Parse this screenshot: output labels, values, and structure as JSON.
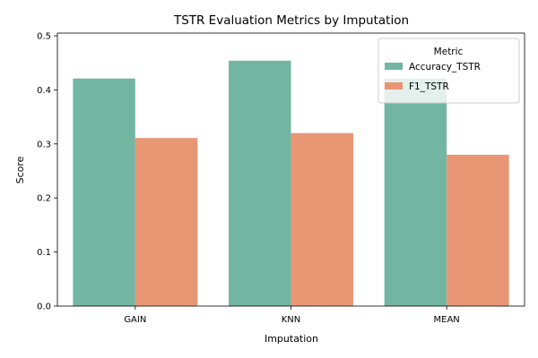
{
  "chart_data": {
    "type": "bar",
    "title": "TSTR Evaluation Metrics by Imputation",
    "xlabel": "Imputation",
    "ylabel": "Score",
    "categories": [
      "GAIN",
      "KNN",
      "MEAN"
    ],
    "series": [
      {
        "name": "Accuracy_TSTR",
        "values": [
          0.421,
          0.454,
          0.421
        ],
        "color": "#72b6a1"
      },
      {
        "name": "F1_TSTR",
        "values": [
          0.311,
          0.32,
          0.28
        ],
        "color": "#e99675"
      }
    ],
    "ylim": [
      0,
      0.505
    ],
    "yticks": [
      "0.0",
      "0.1",
      "0.2",
      "0.3",
      "0.4",
      "0.5"
    ],
    "grid": false,
    "legend": {
      "title": "Metric",
      "placement": "top-right"
    }
  }
}
